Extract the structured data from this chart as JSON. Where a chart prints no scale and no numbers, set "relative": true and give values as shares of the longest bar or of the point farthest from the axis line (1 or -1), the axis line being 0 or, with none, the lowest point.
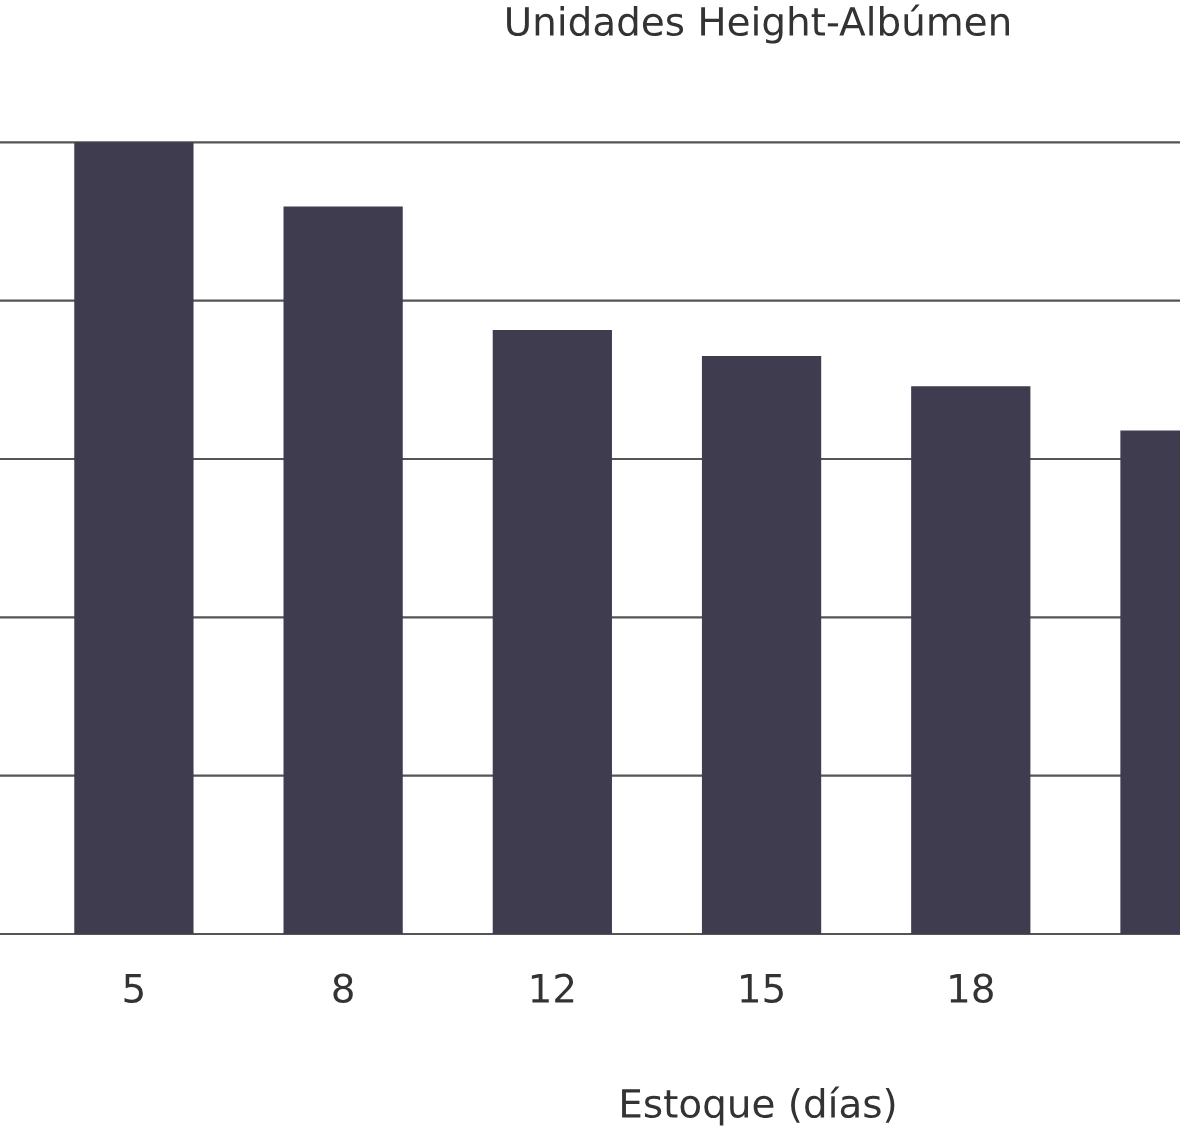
{
  "chart_data": {
    "type": "bar",
    "title": "Unidades Height-Albúmen",
    "xlabel": "Estoque (días)",
    "categories": [
      "5",
      "8",
      "12",
      "15",
      "18",
      null
    ],
    "values": [
      1,
      0.919,
      0.763,
      0.73,
      0.692,
      0.636
    ],
    "color": "#403c4f",
    "relative": true,
    "grid": "y"
  }
}
